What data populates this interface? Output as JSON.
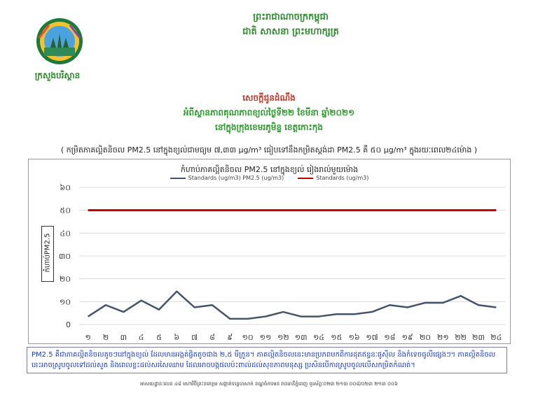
{
  "header": {
    "kingdom_line1": "ព្រះរាជាណាចក្រកម្ពុជា",
    "kingdom_line2": "ជាតិ សាសនា ព្រះមហាក្សត្រ",
    "ministry": "ក្រសួងបរិស្ថាន"
  },
  "title": {
    "line1": "សេចក្តីជូនដំណឹង",
    "line2": "អំពីស្ថានភាពគុណភាពខ្យល់ថ្ងៃទី២២ ខែមីនា ឆ្នាំ២០២១",
    "line3": "នៅក្នុងក្រុងខេមរភូមិន្ទ ខេត្តកោះកុង",
    "note": "( កម្រិតភាគល្អិតនិចល PM2.5 នៅក្នុងខ្យល់ជាមធ្យម ៧,៣៣ μg/m³ ធៀបទៅនឹងកម្រិតស្តង់ដា PM2.5 គឺ ៥០ μg/m³ ក្នុងរយៈពេល២៤ម៉ោង )"
  },
  "colors": {
    "series_line": "#44546a",
    "standard_line": "#c00000",
    "grid": "#d9d9d9"
  },
  "chart_data": {
    "type": "line",
    "title": "កំហាប់ភាគល្អិតនិចល PM2.5 នៅក្នុងខ្យល់ រៀងរាល់មួយម៉ោង",
    "ylabel": "កំហាប់PM2.5",
    "ylim": [
      0,
      60
    ],
    "yticks": [
      "0",
      "១០",
      "២០",
      "៣០",
      "៤០",
      "៥០",
      "៦០"
    ],
    "categories": [
      "១",
      "២",
      "៣",
      "៤",
      "៥",
      "៦",
      "៧",
      "៨",
      "៩",
      "១០",
      "១១",
      "១២",
      "១៣",
      "១៤",
      "១៥",
      "១៦",
      "១៧",
      "១៨",
      "១៩",
      "២០",
      "២១",
      "២២",
      "២៣",
      "២៤"
    ],
    "series": [
      {
        "name": "Standards (ug/m3) PM2.5 (ug/m3)",
        "values": [
          3.5,
          8.5,
          5.5,
          10.5,
          6.5,
          14.5,
          7.5,
          8.5,
          2.5,
          2.5,
          3.5,
          5.5,
          3.5,
          3.5,
          4.5,
          4.5,
          5.5,
          8.5,
          7.5,
          9.5,
          9.5,
          12.5,
          8.5,
          7.5
        ]
      },
      {
        "name": "Standards (ug/m3)",
        "values": [
          50,
          50,
          50,
          50,
          50,
          50,
          50,
          50,
          50,
          50,
          50,
          50,
          50,
          50,
          50,
          50,
          50,
          50,
          50,
          50,
          50,
          50,
          50,
          50
        ]
      }
    ]
  },
  "footer": {
    "note": "PM2.5 គឺជាភាគល្អិតនិចលតូចៗនៅក្នុងខ្យល់ ដែលមានអង្កត់ផ្ចិតតូចជាង ២,៥ មីក្រូន។ ភាគល្អិតនិចលនេះមានប្រភពមកពីការដុតឥន្ធនៈផូស៊ីល និងកំទេចធូលីផ្សេងៗ។ ភាគល្អិតនិចលនេះអាចស្រូបចូលទៅដល់សួត និងពេលខ្លះដល់សរសៃឈាម ដែលអាចបង្កផលប៉ះពាល់ដល់សុខភាពមនុស្ស ប្រសិនបើការស្រូបចូលលើសកម្រិតកំណត់។",
    "address": "អាសយដ្ឋានៈលេខ ៤៨ មហាវិថីព្រះនរោត្តម សង្កាត់ទន្លេបាសាក់ ខណ្ឌចំការមន រាជធានីភ្នំពេញ ទូរស័ព្ទៈ០២៣ ២១៣ ០០៨/០២៣ ២១៣ ០០៦"
  }
}
